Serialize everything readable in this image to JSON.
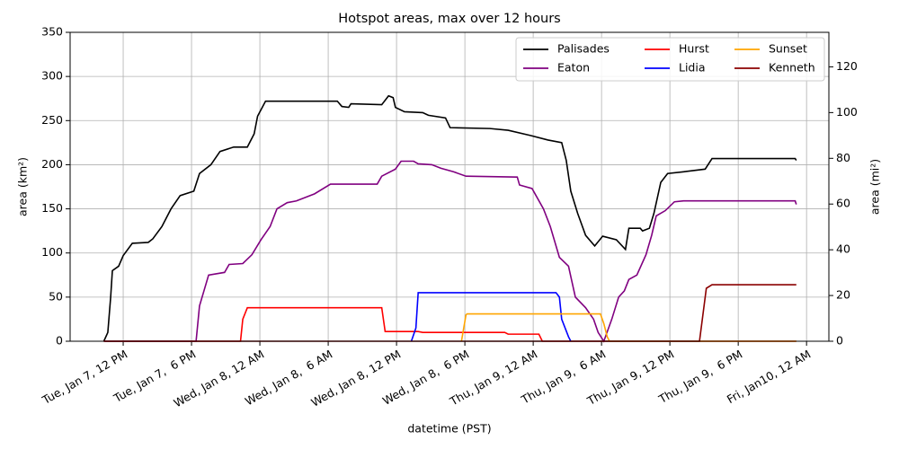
{
  "chart_data": {
    "type": "line",
    "title": "Hotspot areas, max over 12 hours",
    "xlabel": "datetime (PST)",
    "ylabel": "area (km²)",
    "y2label": "area (mi²)",
    "xlim": [
      -4.66,
      61.96
    ],
    "xticks": [
      {
        "value": 0,
        "label": "Tue, Jan 7, 12 PM"
      },
      {
        "value": 6,
        "label": "Tue, Jan 7,  6 PM"
      },
      {
        "value": 12,
        "label": "Wed, Jan 8, 12 AM"
      },
      {
        "value": 18,
        "label": "Wed, Jan 8,  6 AM"
      },
      {
        "value": 24,
        "label": "Wed, Jan 8, 12 PM"
      },
      {
        "value": 30,
        "label": "Wed, Jan 8,  6 PM"
      },
      {
        "value": 36,
        "label": "Thu, Jan 9, 12 AM"
      },
      {
        "value": 42,
        "label": "Thu, Jan 9,  6 AM"
      },
      {
        "value": 48,
        "label": "Thu, Jan 9, 12 PM"
      },
      {
        "value": 54,
        "label": "Thu, Jan 9,  6 PM"
      },
      {
        "value": 60,
        "label": "Fri, Jan10, 12 AM"
      }
    ],
    "ylim": [
      0,
      350
    ],
    "yticks": [
      0,
      50,
      100,
      150,
      200,
      250,
      300,
      350
    ],
    "y2lim": [
      0,
      135.1
    ],
    "y2ticks": [
      0,
      20,
      40,
      60,
      80,
      100,
      120
    ],
    "grid": true,
    "legend": "upper right",
    "series": [
      {
        "name": "Palisades",
        "color": "#000000",
        "x": [
          -1.7,
          -1.35,
          -1.1,
          -0.95,
          -0.4,
          0,
          0.8,
          2.2,
          2.6,
          3.4,
          4.2,
          5,
          6.2,
          6.7,
          7.7,
          8.5,
          9.7,
          10.9,
          11.5,
          11.8,
          12.5,
          18.8,
          19.2,
          19.8,
          20,
          22.7,
          23.3,
          23.7,
          23.9,
          24.7,
          26.3,
          26.8,
          28.3,
          28.7,
          32.2,
          33.8,
          35.8,
          37.3,
          38.5,
          38.9,
          39.3,
          39.9,
          40.6,
          41.4,
          42.1,
          43.3,
          44.1,
          44.4,
          45.4,
          45.6,
          46.2,
          46.6,
          47.2,
          47.8,
          49.2,
          51.1,
          51.7,
          59,
          59.1
        ],
        "values": [
          0,
          10,
          50,
          80,
          85,
          97,
          111,
          112,
          116,
          130,
          150,
          165,
          170,
          190,
          200,
          215,
          220,
          220,
          235,
          255,
          272,
          272,
          266,
          265,
          269,
          268,
          278,
          276,
          265,
          260,
          259,
          256,
          253,
          242,
          241,
          239,
          233,
          228,
          225,
          205,
          170,
          145,
          120,
          108,
          119,
          115,
          104,
          128,
          128,
          125,
          128,
          145,
          180,
          190,
          192,
          195,
          207,
          207,
          205
        ]
      },
      {
        "name": "Eaton",
        "color": "#800080",
        "x": [
          -1.7,
          6.4,
          6.7,
          7.5,
          8.9,
          9.3,
          10.5,
          11.3,
          12.1,
          12.9,
          13.5,
          14.4,
          15.2,
          16.8,
          18.2,
          22.3,
          22.7,
          23.9,
          24.4,
          25.5,
          25.9,
          27.1,
          27.9,
          29,
          30.1,
          34.6,
          34.8,
          35.9,
          36.9,
          37.5,
          38.3,
          39.1,
          39.7,
          40.6,
          41.3,
          41.7,
          42.2,
          42.9,
          43.5,
          44,
          44.4,
          45.1,
          45.9,
          46.4,
          46.8,
          47.6,
          48.4,
          49.2,
          59,
          59.1
        ],
        "values": [
          0,
          0,
          40,
          75,
          78,
          87,
          88,
          98,
          115,
          130,
          150,
          157,
          159,
          167,
          178,
          178,
          187,
          195,
          204,
          204,
          201,
          200,
          196,
          192,
          187,
          186,
          177,
          173,
          150,
          130,
          95,
          85,
          50,
          38,
          25,
          10,
          0,
          25,
          50,
          57,
          70,
          75,
          98,
          120,
          142,
          148,
          158,
          159,
          159,
          155
        ]
      },
      {
        "name": "Hurst",
        "color": "#ff0000",
        "x": [
          -1.7,
          10.3,
          10.5,
          10.9,
          22.7,
          23,
          25.9,
          26.3,
          33.5,
          33.8,
          36.5,
          36.8,
          59.1
        ],
        "values": [
          0,
          0,
          25,
          38,
          38,
          11,
          11,
          10,
          10,
          8,
          8,
          0,
          0
        ]
      },
      {
        "name": "Lidia",
        "color": "#0000ff",
        "x": [
          25.3,
          25.7,
          25.9,
          38,
          38.3,
          38.5,
          39.1,
          39.3
        ],
        "values": [
          0,
          15,
          55,
          55,
          50,
          25,
          5,
          0
        ]
      },
      {
        "name": "Sunset",
        "color": "#ffa500",
        "x": [
          29.7,
          30.1,
          30.2,
          41.9,
          42.2,
          42.5,
          42.7,
          59.1
        ],
        "values": [
          0,
          30,
          31,
          31,
          20,
          5,
          0,
          0
        ]
      },
      {
        "name": "Kenneth",
        "color": "#8b0000",
        "x": [
          -1.7,
          50.6,
          50.9,
          51.2,
          51.7,
          59.1
        ],
        "values": [
          0,
          0,
          30,
          60,
          64,
          64
        ]
      }
    ]
  }
}
